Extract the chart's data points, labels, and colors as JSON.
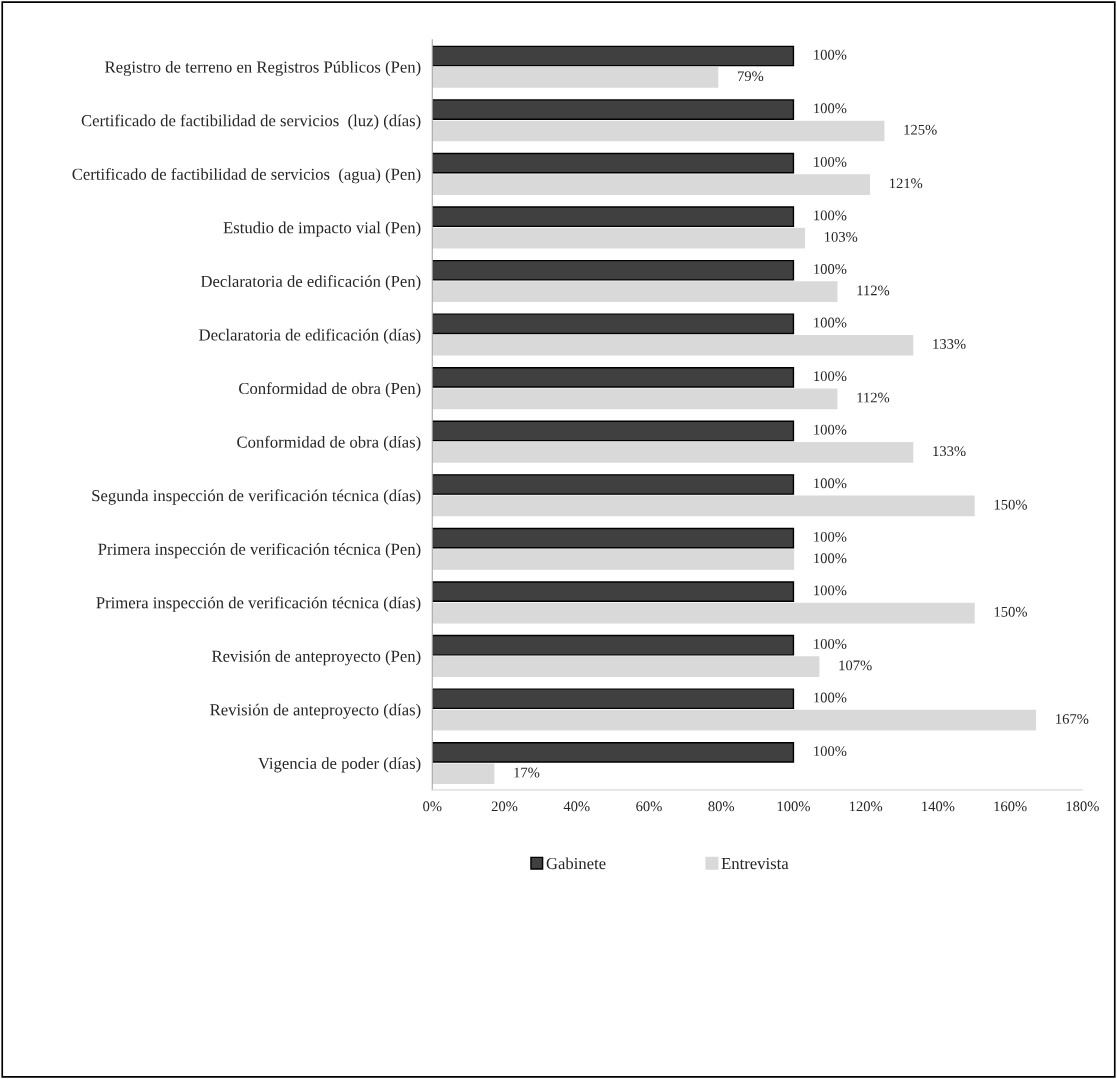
{
  "chart_data": {
    "type": "bar",
    "orientation": "horizontal",
    "categories": [
      "Registro de terreno en Registros Públicos (Pen)",
      "Certificado de factibilidad de servicios  (luz) (días)",
      "Certificado de factibilidad de servicios  (agua) (Pen)",
      "Estudio de impacto vial (Pen)",
      "Declaratoria de edificación (Pen)",
      "Declaratoria de edificación (días)",
      "Conformidad de obra (Pen)",
      "Conformidad de obra (días)",
      "Segunda inspección de verificación técnica (días)",
      "Primera inspección de verificación técnica (Pen)",
      "Primera inspección de verificación técnica (días)",
      "Revisión de anteproyecto (Pen)",
      "Revisión de anteproyecto (días)",
      "Vigencia de poder (días)"
    ],
    "series": [
      {
        "name": "Gabinete",
        "color": "#404040",
        "values": [
          100,
          100,
          100,
          100,
          100,
          100,
          100,
          100,
          100,
          100,
          100,
          100,
          100,
          100
        ],
        "value_labels": [
          "100%",
          "100%",
          "100%",
          "100%",
          "100%",
          "100%",
          "100%",
          "100%",
          "100%",
          "100%",
          "100%",
          "100%",
          "100%",
          "100%"
        ]
      },
      {
        "name": "Entrevista",
        "color": "#d9d9d9",
        "values": [
          79,
          125,
          121,
          103,
          112,
          133,
          112,
          133,
          150,
          100,
          150,
          107,
          167,
          17
        ],
        "value_labels": [
          "79%",
          "125%",
          "121%",
          "103%",
          "112%",
          "133%",
          "112%",
          "133%",
          "150%",
          "100%",
          "150%",
          "107%",
          "167%",
          "17%"
        ]
      }
    ],
    "xlim": [
      0,
      180
    ],
    "xticks": [
      {
        "value": 0,
        "label": "0%"
      },
      {
        "value": 20,
        "label": "20%"
      },
      {
        "value": 40,
        "label": "40%"
      },
      {
        "value": 60,
        "label": "60%"
      },
      {
        "value": 80,
        "label": "80%"
      },
      {
        "value": 100,
        "label": "100%"
      },
      {
        "value": 120,
        "label": "120%"
      },
      {
        "value": 140,
        "label": "140%"
      },
      {
        "value": 160,
        "label": "160%"
      },
      {
        "value": 180,
        "label": "180%"
      }
    ],
    "grid": false,
    "legend": "bottom"
  }
}
